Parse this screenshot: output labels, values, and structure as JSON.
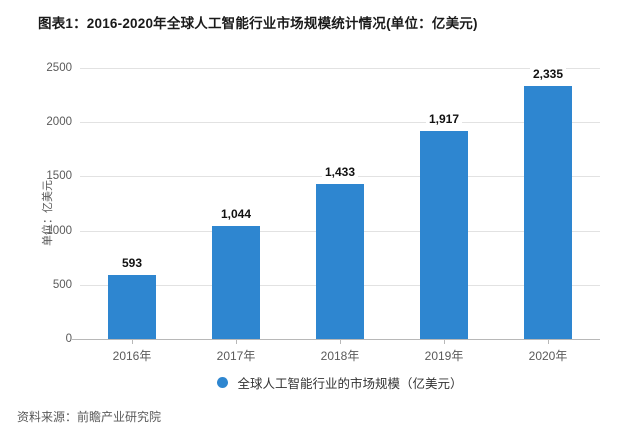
{
  "title": "图表1：2016-2020年全球人工智能行业市场规模统计情况(单位：亿美元)",
  "source_note": "资料来源：前瞻产业研究院",
  "legend": {
    "label": "全球人工智能行业的市场规模（亿美元）",
    "marker_color": "#2e86d0"
  },
  "colors": {
    "bar": "#2e86d0",
    "gridline": "#e2e2e2",
    "axis_line": "#b8b8b8",
    "tick_text": "#5a5a5a",
    "title_text": "#1a1a1a",
    "data_label_text": "#111111"
  },
  "chart_data": {
    "type": "bar",
    "categories": [
      "2016年",
      "2017年",
      "2018年",
      "2019年",
      "2020年"
    ],
    "values": [
      593,
      1044,
      1433,
      1917,
      2335
    ],
    "value_labels": [
      "593",
      "1,044",
      "1,433",
      "1,917",
      "2,335"
    ],
    "title": "图表1：2016-2020年全球人工智能行业市场规模统计情况(单位：亿美元)",
    "xlabel": "",
    "ylabel": "单位：亿美元",
    "ylim": [
      0,
      2500
    ],
    "ytick_step": 500,
    "yticks": [
      0,
      500,
      1000,
      1500,
      2000,
      2500
    ],
    "grid": true,
    "legend_position": "bottom",
    "bar_color": "#2e86d0"
  }
}
